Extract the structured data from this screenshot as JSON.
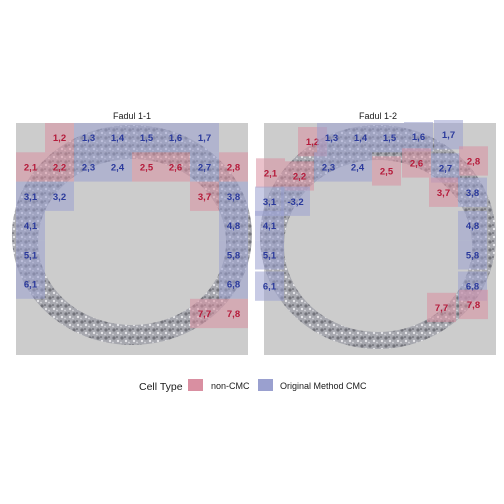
{
  "chart_data": [
    {
      "type": "heatmap",
      "title": "Fadul 1-1",
      "cells": [
        {
          "label": "1,2",
          "cell_type": "non-CMC"
        },
        {
          "label": "1,3",
          "cell_type": "Original Method CMC"
        },
        {
          "label": "1,4",
          "cell_type": "Original Method CMC"
        },
        {
          "label": "1,5",
          "cell_type": "Original Method CMC"
        },
        {
          "label": "1,6",
          "cell_type": "Original Method CMC"
        },
        {
          "label": "1,7",
          "cell_type": "Original Method CMC"
        },
        {
          "label": "2,1",
          "cell_type": "non-CMC"
        },
        {
          "label": "2,2",
          "cell_type": "non-CMC"
        },
        {
          "label": "2,3",
          "cell_type": "Original Method CMC"
        },
        {
          "label": "2,4",
          "cell_type": "Original Method CMC"
        },
        {
          "label": "2,5",
          "cell_type": "non-CMC"
        },
        {
          "label": "2,6",
          "cell_type": "non-CMC"
        },
        {
          "label": "2,7",
          "cell_type": "Original Method CMC"
        },
        {
          "label": "2,8",
          "cell_type": "non-CMC"
        },
        {
          "label": "3,1",
          "cell_type": "Original Method CMC"
        },
        {
          "label": "3,2",
          "cell_type": "Original Method CMC"
        },
        {
          "label": "3,7",
          "cell_type": "non-CMC"
        },
        {
          "label": "3,8",
          "cell_type": "Original Method CMC"
        },
        {
          "label": "4,1",
          "cell_type": "Original Method CMC"
        },
        {
          "label": "4,8",
          "cell_type": "Original Method CMC"
        },
        {
          "label": "5,1",
          "cell_type": "Original Method CMC"
        },
        {
          "label": "5,8",
          "cell_type": "Original Method CMC"
        },
        {
          "label": "6,1",
          "cell_type": "Original Method CMC"
        },
        {
          "label": "6,8",
          "cell_type": "Original Method CMC"
        },
        {
          "label": "7,7",
          "cell_type": "non-CMC"
        },
        {
          "label": "7,8",
          "cell_type": "non-CMC"
        }
      ]
    },
    {
      "type": "heatmap",
      "title": "Fadul 1-2",
      "cells": [
        {
          "label": "1,2",
          "cell_type": "non-CMC"
        },
        {
          "label": "1,3",
          "cell_type": "Original Method CMC"
        },
        {
          "label": "1,4",
          "cell_type": "Original Method CMC"
        },
        {
          "label": "1,5",
          "cell_type": "Original Method CMC"
        },
        {
          "label": "1,6",
          "cell_type": "Original Method CMC"
        },
        {
          "label": "1,7",
          "cell_type": "Original Method CMC"
        },
        {
          "label": "2,1",
          "cell_type": "non-CMC"
        },
        {
          "label": "2,2",
          "cell_type": "non-CMC"
        },
        {
          "label": "2,3",
          "cell_type": "Original Method CMC"
        },
        {
          "label": "2,4",
          "cell_type": "Original Method CMC"
        },
        {
          "label": "2,5",
          "cell_type": "non-CMC"
        },
        {
          "label": "2,6",
          "cell_type": "non-CMC"
        },
        {
          "label": "2,7",
          "cell_type": "Original Method CMC"
        },
        {
          "label": "2,8",
          "cell_type": "non-CMC"
        },
        {
          "label": "3,1",
          "cell_type": "Original Method CMC"
        },
        {
          "label": "-3,2",
          "cell_type": "Original Method CMC"
        },
        {
          "label": "3,7",
          "cell_type": "non-CMC"
        },
        {
          "label": "3,8",
          "cell_type": "Original Method CMC"
        },
        {
          "label": "4,1",
          "cell_type": "Original Method CMC"
        },
        {
          "label": "4,8",
          "cell_type": "Original Method CMC"
        },
        {
          "label": "5,1",
          "cell_type": "Original Method CMC"
        },
        {
          "label": "5,8",
          "cell_type": "Original Method CMC"
        },
        {
          "label": "6,1",
          "cell_type": "Original Method CMC"
        },
        {
          "label": "6,8",
          "cell_type": "Original Method CMC"
        },
        {
          "label": "7,7",
          "cell_type": "non-CMC"
        },
        {
          "label": "7,8",
          "cell_type": "non-CMC"
        }
      ]
    }
  ],
  "legend": {
    "title": "Cell Type",
    "placement": "bottom",
    "entries": [
      {
        "label": "non-CMC",
        "color": "#d98fa1"
      },
      {
        "label": "Original Method CMC",
        "color": "#9aa0cf"
      }
    ]
  },
  "colors": {
    "panel_background": "#cccccc",
    "non_cmc_fill": "#d98fa1",
    "cmc_fill": "#9aa0cf",
    "non_cmc_text": "#b51a3a",
    "cmc_text": "#2b3a9c",
    "scan_fill": "#9e9fa6"
  }
}
